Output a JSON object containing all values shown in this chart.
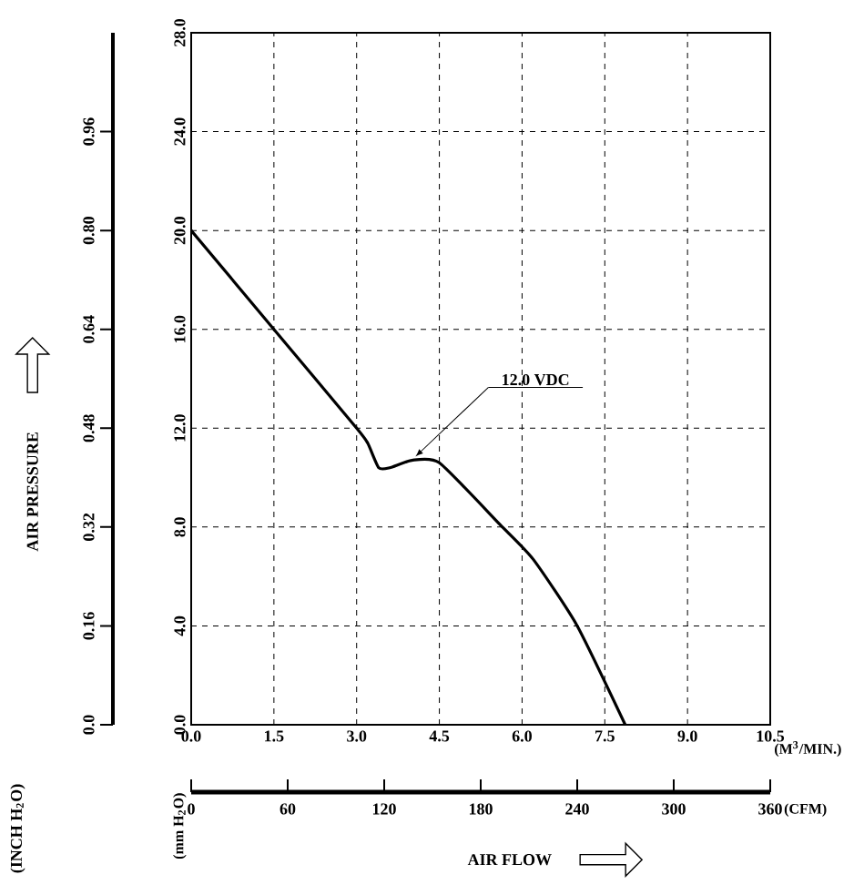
{
  "chart_data": {
    "type": "line",
    "x": [
      0,
      1.5,
      3.0,
      3.2,
      3.4,
      3.6,
      4.0,
      4.5,
      5.6,
      6.2,
      7.0,
      7.87
    ],
    "series": [
      {
        "name": "12.0 VDC",
        "color": "#000000",
        "values": [
          20.0,
          16.0,
          12.0,
          11.4,
          10.4,
          10.4,
          10.7,
          10.6,
          8.1,
          6.7,
          4.0,
          0
        ]
      }
    ],
    "xlim": [
      0,
      10.5
    ],
    "xticks": [
      {
        "value": 0,
        "label": "0.0"
      },
      {
        "value": 1.5,
        "label": "1.5"
      },
      {
        "value": 3,
        "label": "3.0"
      },
      {
        "value": 4.5,
        "label": "4.5"
      },
      {
        "value": 6,
        "label": "6.0"
      },
      {
        "value": 7.5,
        "label": "7.5"
      },
      {
        "value": 9,
        "label": "9.0"
      },
      {
        "value": 10.5,
        "label": "10.5"
      }
    ],
    "ylim": [
      0,
      28
    ],
    "yticks": [
      {
        "value": 0,
        "label": "0.0"
      },
      {
        "value": 4,
        "label": "4.0"
      },
      {
        "value": 8,
        "label": "8.0"
      },
      {
        "value": 12,
        "label": "12.0"
      },
      {
        "value": 16,
        "label": "16.0"
      },
      {
        "value": 20,
        "label": "20.0"
      },
      {
        "value": 24,
        "label": "24.0"
      },
      {
        "value": 28,
        "label": "28.0"
      }
    ],
    "y2lim": [
      0,
      1.12
    ],
    "y2ticks": [
      {
        "value": 0,
        "label": "0.0"
      },
      0.16,
      0.32,
      0.48,
      0.64,
      {
        "value": 0.8,
        "label": "0.80"
      },
      0.96
    ],
    "x2lim": [
      0,
      360
    ],
    "x2ticks": [
      0,
      60,
      120,
      180,
      240,
      300,
      360
    ],
    "xlabel": "(M$^{3}$/MIN.)",
    "x2label": "(CFM)",
    "ylabel": "(mm H$_{2}$O)",
    "y2label": "(INCH H$_{2}$O)",
    "annotations": [
      "AIR PRESSURE",
      "AIR FLOW"
    ],
    "grid": true
  }
}
